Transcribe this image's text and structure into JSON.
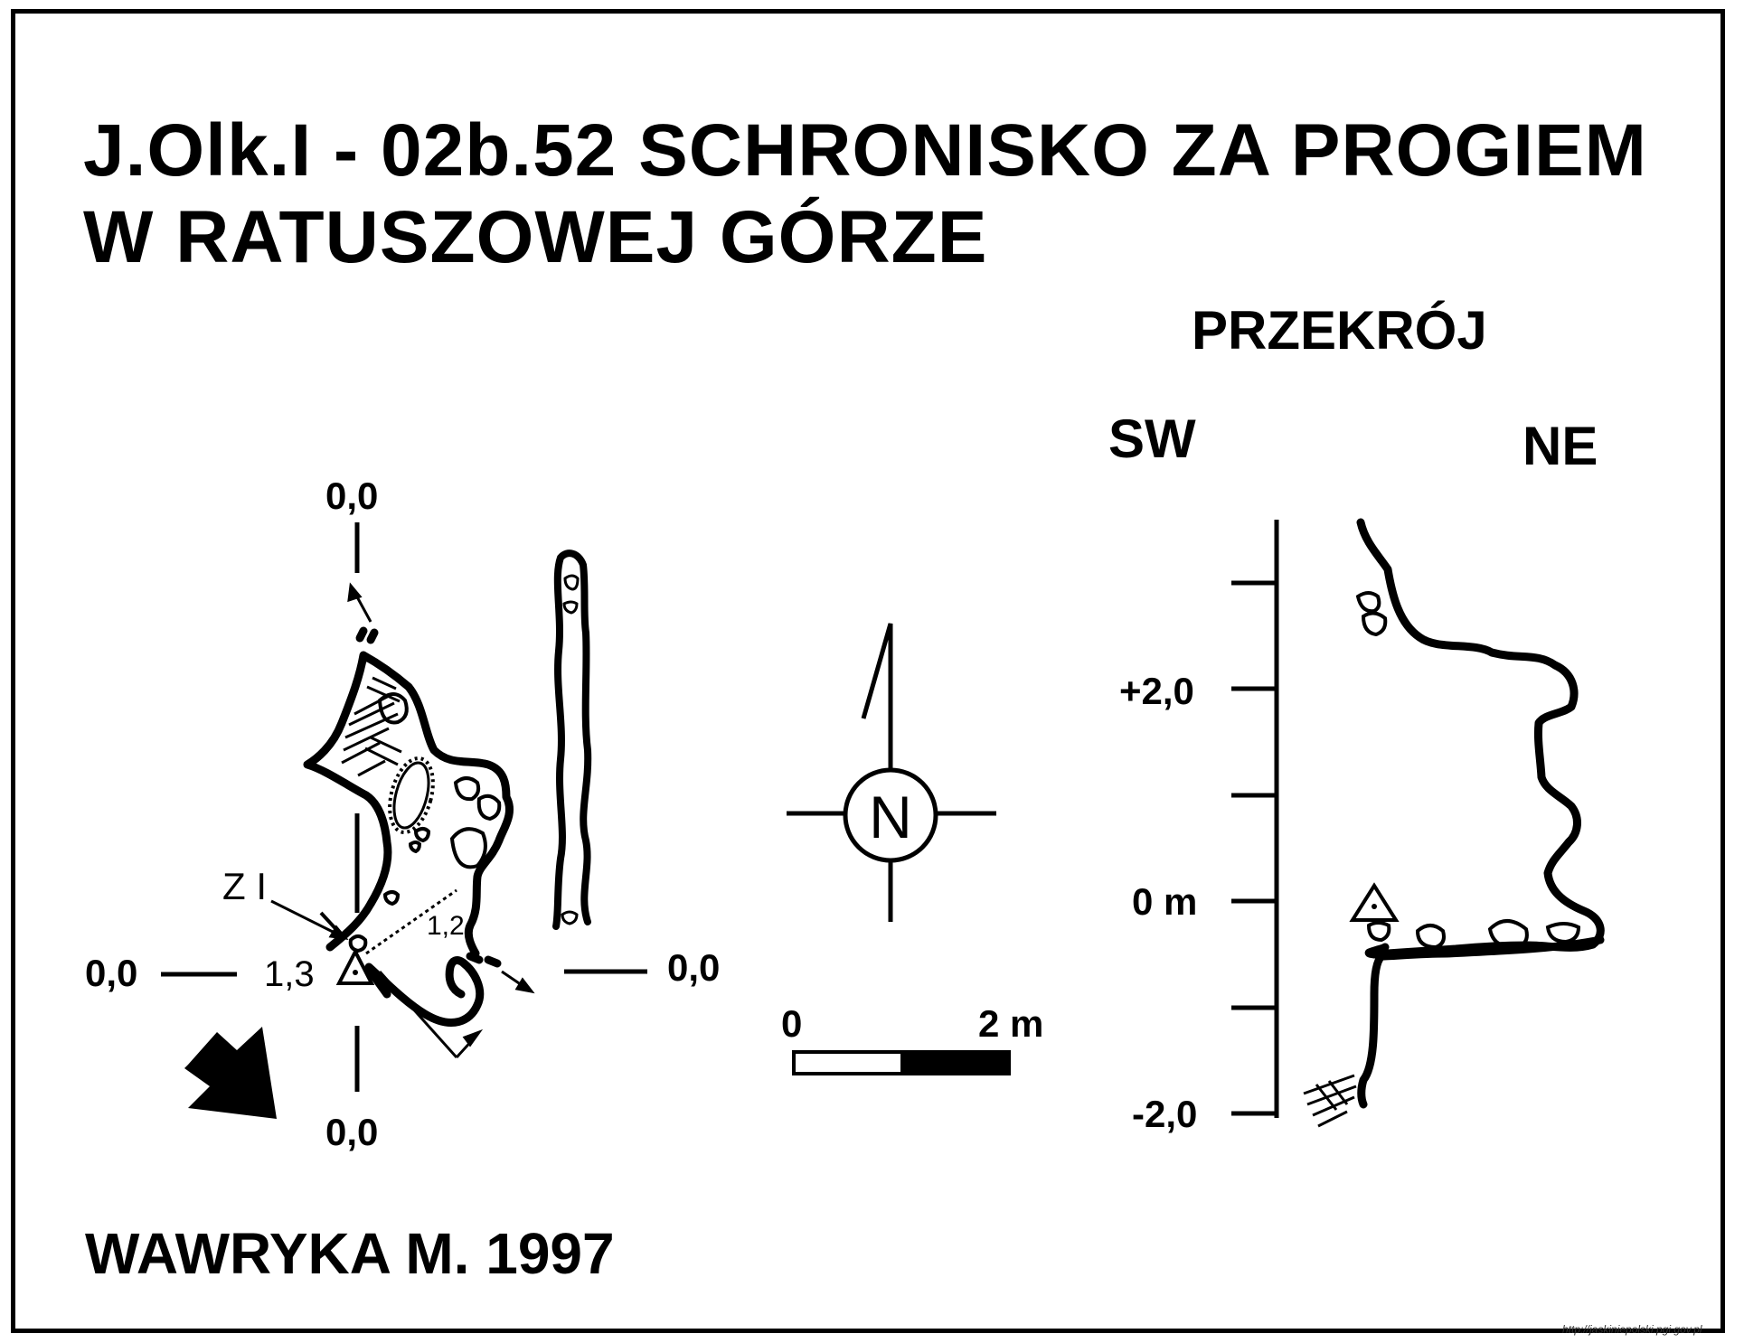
{
  "map": {
    "title_line1": "J.Olk.I - 02b.52  SCHRONISKO ZA PROGIEM",
    "title_line2": "W RATUSZOWEJ GÓRZE",
    "author": "WAWRYKA M. 1997",
    "source_url": "http://jaskiniepolski.pgi.gov.pl"
  },
  "plan": {
    "axis_top": "0,0",
    "axis_left": "0,0",
    "axis_right": "0,0",
    "axis_bottom": "0,0",
    "entrance_height": "1,3",
    "inner_height": "1,2",
    "station_label": "Z I"
  },
  "compass": {
    "north_letter": "N"
  },
  "scale_bar": {
    "start_label": "0",
    "end_label": "2 m"
  },
  "section": {
    "title": "PRZEKRÓJ",
    "left_direction": "SW",
    "right_direction": "NE",
    "ticks": [
      "+2,0",
      "0 m",
      "-2,0"
    ]
  },
  "colors": {
    "ink": "#000000",
    "paper": "#ffffff"
  }
}
